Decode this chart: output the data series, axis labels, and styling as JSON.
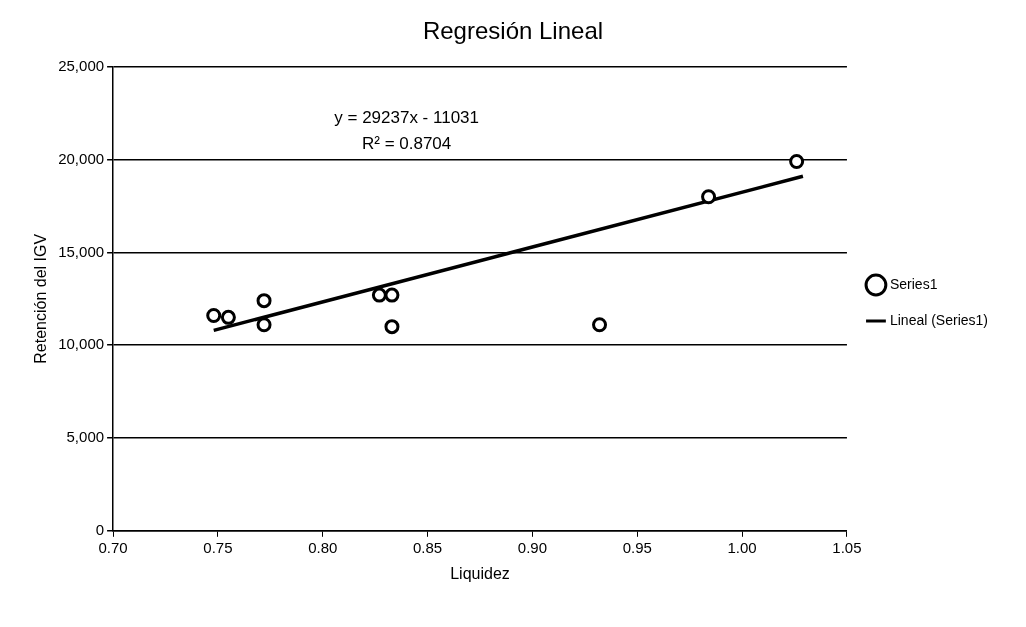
{
  "chart_data": {
    "type": "scatter",
    "title": "Regresión Lineal",
    "xlabel": "Liquidez",
    "ylabel": "Retención del IGV",
    "series": [
      {
        "name": "Series1",
        "color": "#000000",
        "marker": "circle",
        "x": [
          0.748,
          0.755,
          0.772,
          0.772,
          0.827,
          0.833,
          0.833,
          0.932,
          0.984,
          1.026
        ],
        "values": [
          11600,
          11500,
          12400,
          11100,
          12700,
          12700,
          11000,
          11100,
          18000,
          19900
        ]
      },
      {
        "name": "Lineal (Series1)",
        "type": "line",
        "color": "#000000",
        "marker": "none",
        "x": [
          0.748,
          1.029
        ],
        "values": [
          10800,
          19100
        ]
      }
    ],
    "xlim": [
      0.7,
      1.05
    ],
    "xticks": [
      {
        "value": 0.7,
        "label": "0.70"
      },
      {
        "value": 0.75,
        "label": "0.75"
      },
      {
        "value": 0.8,
        "label": "0.80"
      },
      {
        "value": 0.85,
        "label": "0.85"
      },
      {
        "value": 0.9,
        "label": "0.90"
      },
      {
        "value": 0.95,
        "label": "0.95"
      },
      {
        "value": 1.0,
        "label": "1.00"
      },
      {
        "value": 1.05,
        "label": "1.05"
      }
    ],
    "ylim": [
      0,
      25000
    ],
    "yticks": [
      {
        "value": 0,
        "label": "0"
      },
      {
        "value": 5000,
        "label": "5,000"
      },
      {
        "value": 10000,
        "label": "10,000"
      },
      {
        "value": 15000,
        "label": "15,000"
      },
      {
        "value": 20000,
        "label": "20,000"
      },
      {
        "value": 25000,
        "label": "25,000"
      }
    ],
    "grid": "y",
    "legend": "right",
    "annotations": [
      "y = 29237x - 11031",
      "R² = 0.8704"
    ]
  }
}
